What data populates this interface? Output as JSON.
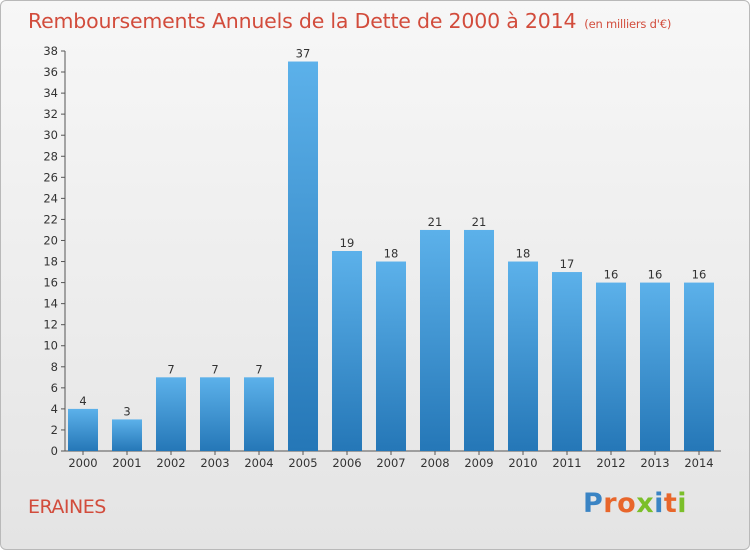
{
  "title": "Remboursements Annuels de la Dette de 2000 à 2014",
  "unit": "(en milliers d'€)",
  "commune": "ERAINES",
  "logo": "Proxiti",
  "colors": {
    "title": "#d24c3c",
    "bar_light": "#5cb1ea",
    "bar_dark": "#2577b7",
    "logo": [
      "#3a84c4",
      "#e8662b",
      "#e8662b",
      "#7bbf2a",
      "#3a84c4",
      "#e8662b",
      "#7bbf2a"
    ]
  },
  "chart_data": {
    "type": "bar",
    "title": "Remboursements Annuels de la Dette de 2000 à 2014",
    "categories": [
      "2000",
      "2001",
      "2002",
      "2003",
      "2004",
      "2005",
      "2006",
      "2007",
      "2008",
      "2009",
      "2010",
      "2011",
      "2012",
      "2013",
      "2014"
    ],
    "values": [
      4,
      3,
      7,
      7,
      7,
      37,
      19,
      18,
      21,
      21,
      18,
      17,
      16,
      16,
      16
    ],
    "ylim": [
      0,
      38
    ],
    "yticks": [
      0,
      2,
      4,
      6,
      8,
      10,
      12,
      14,
      16,
      18,
      20,
      22,
      24,
      26,
      28,
      30,
      32,
      34,
      36,
      38
    ],
    "grid": false,
    "data_labels": true
  }
}
